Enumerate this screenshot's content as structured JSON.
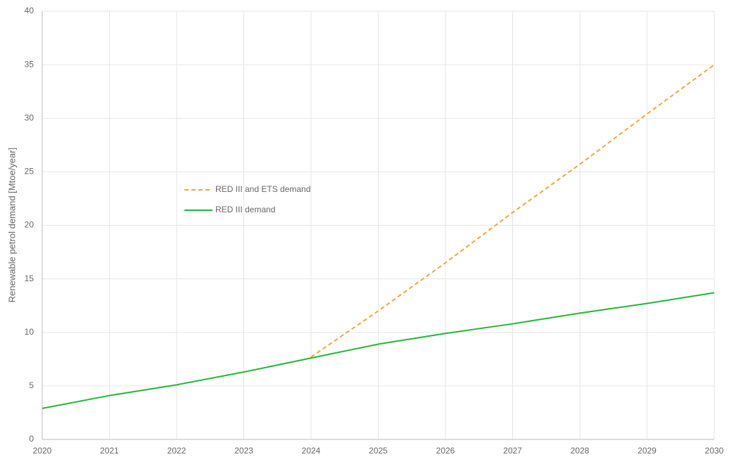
{
  "chart_data": {
    "type": "line",
    "y_label": "Renewable petrol demand [Mtoe/year]",
    "x": [
      2020,
      2021,
      2022,
      2023,
      2024,
      2025,
      2026,
      2027,
      2028,
      2029,
      2030
    ],
    "series": [
      {
        "name": "RED III and ETS demand",
        "color": "#f5a53a",
        "dashed": true,
        "values": [
          null,
          null,
          null,
          null,
          7.7,
          12.0,
          16.5,
          21.2,
          25.7,
          30.4,
          35.0
        ]
      },
      {
        "name": "RED III demand",
        "color": "#1fba32",
        "dashed": false,
        "values": [
          2.9,
          4.1,
          5.1,
          6.3,
          7.6,
          8.9,
          9.9,
          10.8,
          11.8,
          12.7,
          13.7
        ]
      }
    ],
    "xlim": [
      2020,
      2030
    ],
    "xticks": [
      2020,
      2021,
      2022,
      2023,
      2024,
      2025,
      2026,
      2027,
      2028,
      2029,
      2030
    ],
    "ylim": [
      0,
      40
    ],
    "yticks": [
      0,
      5,
      10,
      15,
      20,
      25,
      30,
      35,
      40
    ],
    "grid": true,
    "legend": "center-left"
  }
}
